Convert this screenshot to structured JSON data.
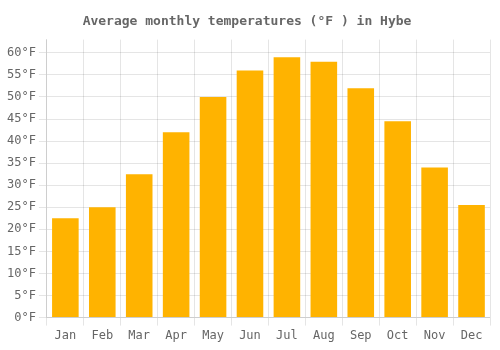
{
  "chart_data": {
    "type": "bar",
    "title": "Average monthly temperatures (°F ) in Hybe",
    "categories": [
      "Jan",
      "Feb",
      "Mar",
      "Apr",
      "May",
      "Jun",
      "Jul",
      "Aug",
      "Sep",
      "Oct",
      "Nov",
      "Dec"
    ],
    "values": [
      22.5,
      25.0,
      32.5,
      42.0,
      50.0,
      56.0,
      59.0,
      58.0,
      52.0,
      44.5,
      34.0,
      25.5
    ],
    "color": "#FFB300",
    "ylim": [
      0,
      63
    ],
    "yticks": [
      {
        "value": 0,
        "label": "0°F"
      },
      {
        "value": 5,
        "label": "5°F"
      },
      {
        "value": 10,
        "label": "10°F"
      },
      {
        "value": 15,
        "label": "15°F"
      },
      {
        "value": 20,
        "label": "20°F"
      },
      {
        "value": 25,
        "label": "25°F"
      },
      {
        "value": 30,
        "label": "30°F"
      },
      {
        "value": 35,
        "label": "35°F"
      },
      {
        "value": 40,
        "label": "40°F"
      },
      {
        "value": 45,
        "label": "45°F"
      },
      {
        "value": 50,
        "label": "50°F"
      },
      {
        "value": 55,
        "label": "55°F"
      },
      {
        "value": 60,
        "label": "60°F"
      }
    ],
    "grid": true
  }
}
